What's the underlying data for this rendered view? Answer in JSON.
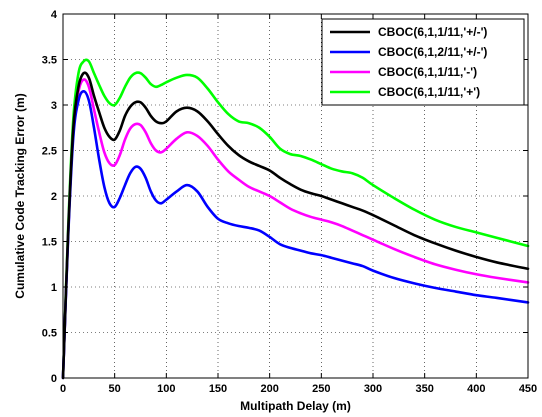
{
  "chart_data": {
    "type": "line",
    "title": "",
    "xlabel": "Multipath Delay (m)",
    "ylabel": "Cumulative Code Tracking Error (m)",
    "xlim": [
      0,
      450
    ],
    "ylim": [
      0,
      4
    ],
    "xticks": [
      0,
      50,
      100,
      150,
      200,
      250,
      300,
      350,
      400,
      450
    ],
    "yticks": [
      0,
      0.5,
      1,
      1.5,
      2,
      2.5,
      3,
      3.5,
      4
    ],
    "grid": true,
    "legend_position": "top-right",
    "x": [
      0,
      5,
      10,
      15,
      20,
      25,
      30,
      35,
      40,
      45,
      50,
      55,
      60,
      65,
      70,
      75,
      80,
      85,
      90,
      95,
      100,
      110,
      120,
      130,
      140,
      150,
      160,
      170,
      180,
      190,
      200,
      210,
      220,
      230,
      240,
      250,
      260,
      270,
      280,
      290,
      300,
      320,
      340,
      360,
      380,
      400,
      420,
      450
    ],
    "series": [
      {
        "name": "CBOC(6,1,1/11,'+/-')",
        "color": "#000000",
        "values": [
          0,
          1.6,
          2.75,
          3.2,
          3.35,
          3.3,
          3.1,
          2.92,
          2.75,
          2.65,
          2.62,
          2.72,
          2.88,
          2.98,
          3.03,
          3.03,
          2.97,
          2.88,
          2.82,
          2.8,
          2.82,
          2.93,
          2.97,
          2.93,
          2.82,
          2.68,
          2.55,
          2.45,
          2.38,
          2.33,
          2.28,
          2.2,
          2.13,
          2.07,
          2.03,
          2.0,
          1.96,
          1.92,
          1.88,
          1.84,
          1.79,
          1.68,
          1.57,
          1.48,
          1.4,
          1.33,
          1.27,
          1.2
        ]
      },
      {
        "name": "CBOC(6,1,2/11,'+/-')",
        "color": "#0000ff",
        "values": [
          0,
          1.55,
          2.65,
          3.05,
          3.15,
          3.05,
          2.75,
          2.4,
          2.1,
          1.92,
          1.88,
          1.98,
          2.12,
          2.25,
          2.32,
          2.3,
          2.2,
          2.05,
          1.95,
          1.92,
          1.96,
          2.05,
          2.12,
          2.05,
          1.88,
          1.75,
          1.7,
          1.67,
          1.65,
          1.62,
          1.55,
          1.47,
          1.43,
          1.4,
          1.37,
          1.35,
          1.32,
          1.29,
          1.26,
          1.23,
          1.18,
          1.1,
          1.04,
          0.99,
          0.95,
          0.91,
          0.88,
          0.83
        ]
      },
      {
        "name": "CBOC(6,1,1/11,'-')",
        "color": "#ff00ff",
        "values": [
          0,
          1.58,
          2.72,
          3.15,
          3.28,
          3.2,
          2.95,
          2.7,
          2.48,
          2.36,
          2.34,
          2.45,
          2.62,
          2.74,
          2.79,
          2.78,
          2.7,
          2.58,
          2.5,
          2.48,
          2.52,
          2.63,
          2.7,
          2.66,
          2.55,
          2.4,
          2.27,
          2.18,
          2.1,
          2.05,
          2.0,
          1.93,
          1.86,
          1.81,
          1.77,
          1.74,
          1.71,
          1.67,
          1.62,
          1.57,
          1.52,
          1.42,
          1.33,
          1.25,
          1.19,
          1.14,
          1.1,
          1.05
        ]
      },
      {
        "name": "CBOC(6,1,1/11,'+')",
        "color": "#00ff00",
        "values": [
          0,
          1.65,
          2.85,
          3.35,
          3.48,
          3.48,
          3.35,
          3.22,
          3.1,
          3.02,
          3.0,
          3.08,
          3.2,
          3.3,
          3.35,
          3.35,
          3.3,
          3.23,
          3.2,
          3.22,
          3.25,
          3.3,
          3.33,
          3.3,
          3.18,
          3.03,
          2.9,
          2.82,
          2.8,
          2.75,
          2.65,
          2.52,
          2.46,
          2.44,
          2.4,
          2.35,
          2.3,
          2.27,
          2.25,
          2.2,
          2.12,
          1.98,
          1.85,
          1.74,
          1.66,
          1.6,
          1.54,
          1.45
        ]
      }
    ]
  }
}
